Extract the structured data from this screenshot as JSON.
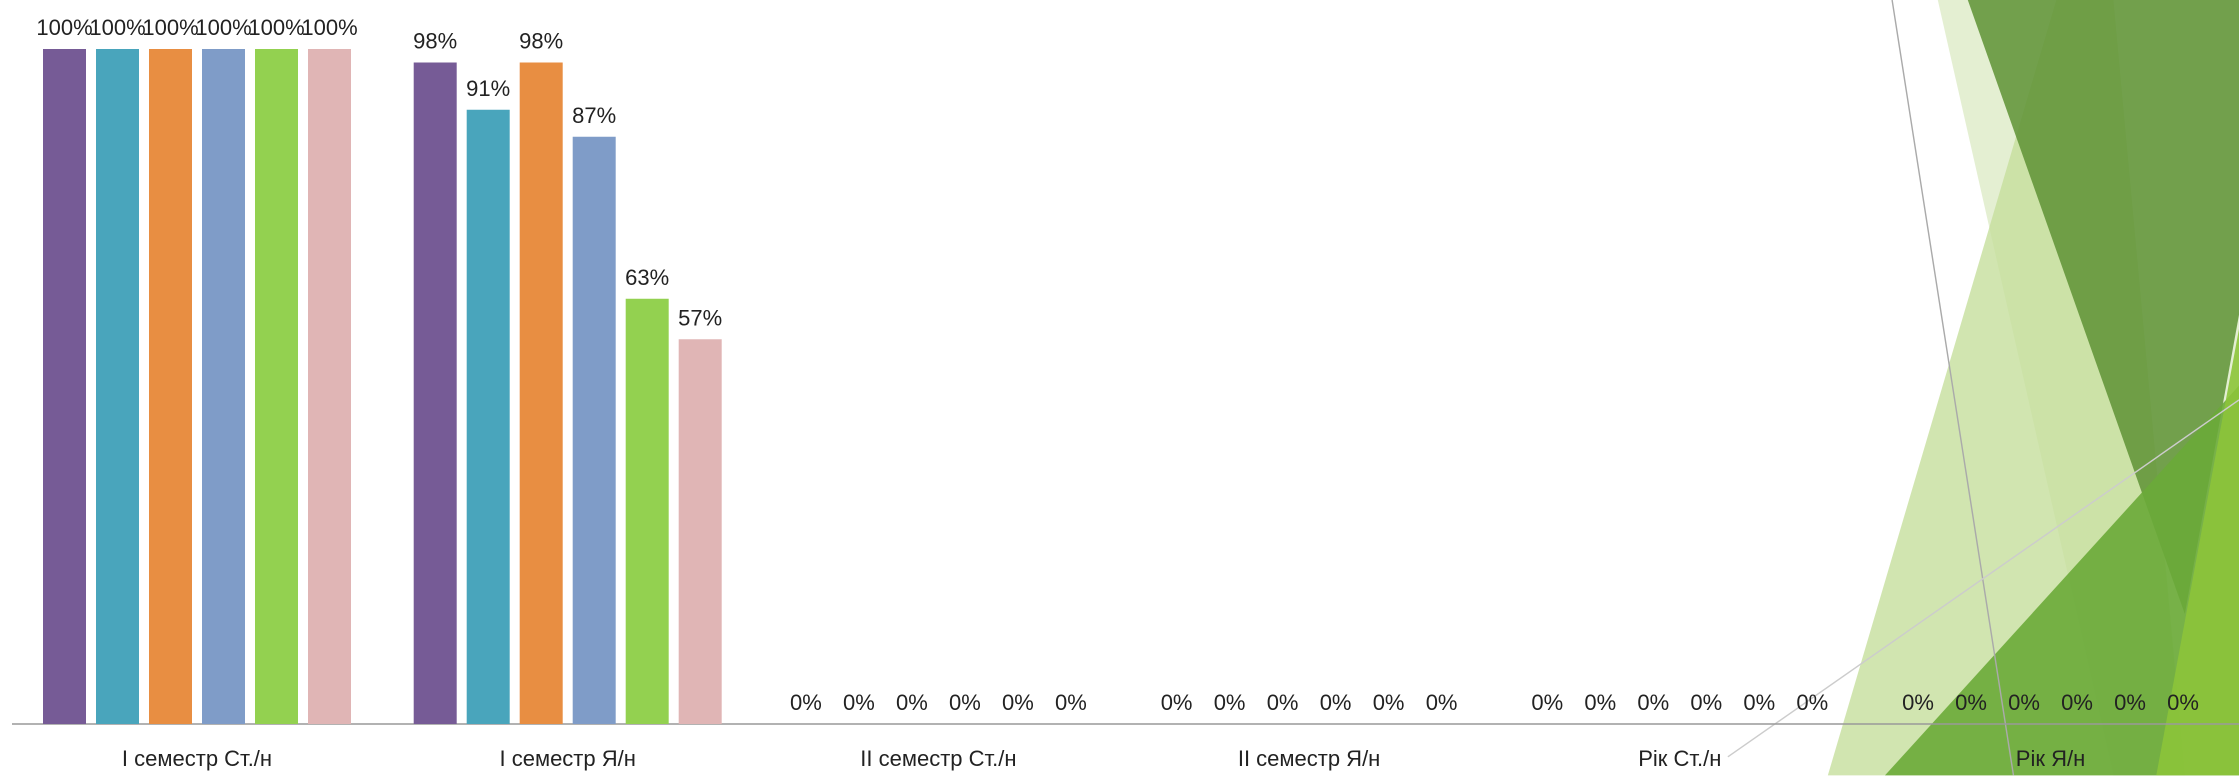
{
  "chart_data": {
    "type": "bar",
    "categories": [
      "І семестр Ст./н",
      "І семестр Я/н",
      "ІІ семестр Ст./н",
      "ІІ семестр Я/н",
      "Рік Ст./н",
      "Рік Я/н"
    ],
    "series": [
      {
        "color": "#765b96",
        "values": [
          100,
          98,
          0,
          0,
          0,
          0
        ],
        "value_labels": [
          "100%",
          "98%",
          "0%",
          "0%",
          "0%",
          "0%"
        ]
      },
      {
        "color": "#49a5bc",
        "values": [
          100,
          91,
          0,
          0,
          0,
          0
        ],
        "value_labels": [
          "100%",
          "91%",
          "0%",
          "0%",
          "0%",
          "0%"
        ]
      },
      {
        "color": "#e88e42",
        "values": [
          100,
          98,
          0,
          0,
          0,
          0
        ],
        "value_labels": [
          "100%",
          "98%",
          "0%",
          "0%",
          "0%",
          "0%"
        ]
      },
      {
        "color": "#7f9cc8",
        "values": [
          100,
          87,
          0,
          0,
          0,
          0
        ],
        "value_labels": [
          "100%",
          "87%",
          "0%",
          "0%",
          "0%",
          "0%"
        ]
      },
      {
        "color": "#93d150",
        "values": [
          100,
          63,
          0,
          0,
          0,
          0
        ],
        "value_labels": [
          "100%",
          "63%",
          "0%",
          "0%",
          "0%",
          "0%"
        ]
      },
      {
        "color": "#e0b5b5",
        "values": [
          100,
          57,
          0,
          0,
          0,
          0
        ],
        "value_labels": [
          "100%",
          "57%",
          "0%",
          "0%",
          "0%",
          "0%"
        ]
      }
    ]
  }
}
